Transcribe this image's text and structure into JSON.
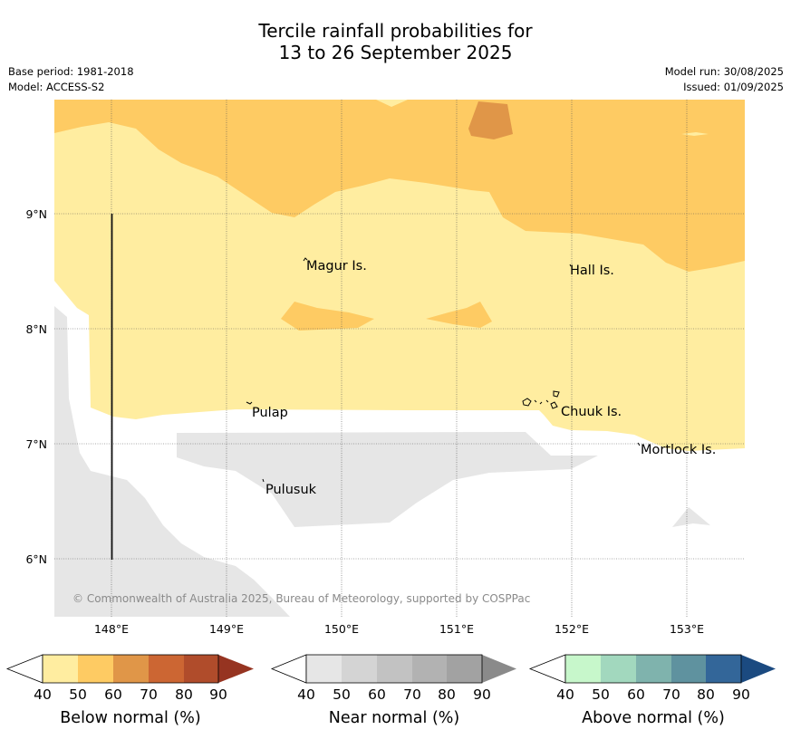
{
  "title": {
    "line1": "Tercile rainfall probabilities for",
    "line2": "13 to 26 September 2025"
  },
  "meta": {
    "base_period": "Base period: 1981-2018",
    "model": "Model: ACCESS-S2",
    "model_run": "Model run: 30/08/2025",
    "issued": "Issued: 01/09/2025"
  },
  "map": {
    "lon_labels": [
      "148°E",
      "149°E",
      "150°E",
      "151°E",
      "152°E",
      "153°E"
    ],
    "lat_labels": [
      "9°N",
      "8°N",
      "7°N",
      "6°N"
    ],
    "places": {
      "magur": "Magur Is.",
      "hall": "Hall Is.",
      "pulap": "Pulap",
      "chuuk": "Chuuk Is.",
      "mortlock": "Mortlock Is.",
      "pulusuk": "Pulusuk"
    },
    "copyright": "© Commonwealth of Australia 2025, Bureau of Meteorology, supported by COSPPac",
    "colors": {
      "below_40_50": "#ffeda0",
      "below_50_60": "#fecb63",
      "below_60_70": "#e09648",
      "near_40_50": "#e6e6e6"
    }
  },
  "legends": [
    {
      "label": "Below normal (%)",
      "ticks": [
        "40",
        "50",
        "60",
        "70",
        "80",
        "90"
      ],
      "colors": [
        "#ffeda0",
        "#fecb63",
        "#e09648",
        "#cc6633",
        "#b04c2b",
        "#963421"
      ]
    },
    {
      "label": "Near normal (%)",
      "ticks": [
        "40",
        "50",
        "60",
        "70",
        "80",
        "90"
      ],
      "colors": [
        "#e6e6e6",
        "#d4d4d4",
        "#c2c2c2",
        "#b2b2b2",
        "#a2a2a2",
        "#8a8a8a"
      ]
    },
    {
      "label": "Above normal (%)",
      "ticks": [
        "40",
        "50",
        "60",
        "70",
        "80",
        "90"
      ],
      "colors": [
        "#c7f7cb",
        "#a2d8be",
        "#7fb3ad",
        "#5f929f",
        "#336699",
        "#1b4a80"
      ]
    }
  ]
}
